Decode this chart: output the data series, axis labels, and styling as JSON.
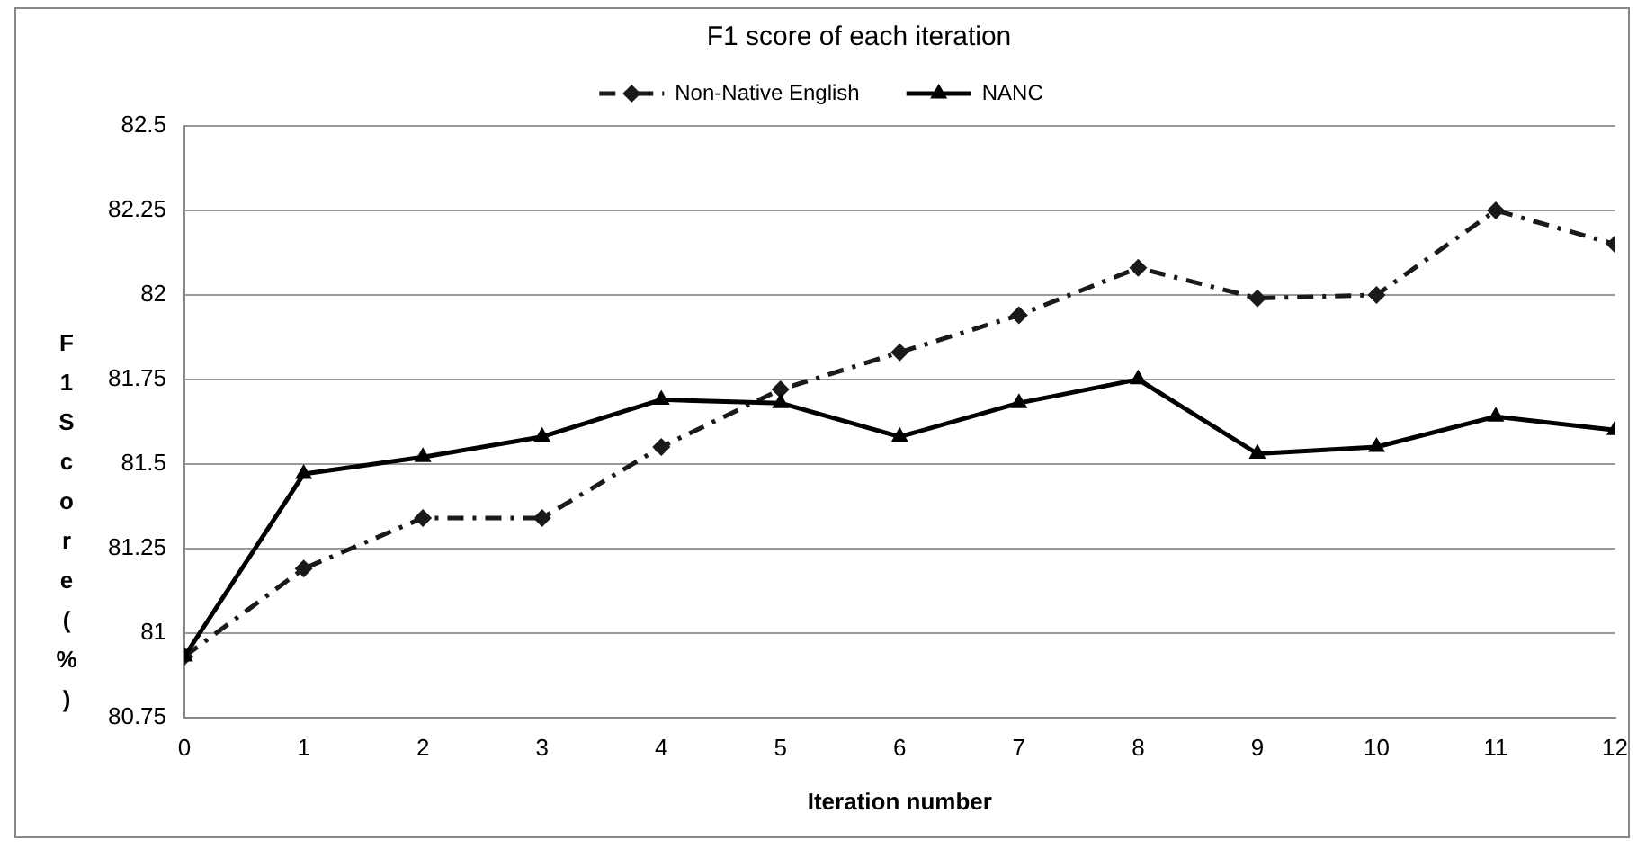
{
  "chart_data": {
    "type": "line",
    "title": "F1 score of each iteration",
    "xlabel": "Iteration number",
    "ylabel": "F1 Score (%)",
    "x": [
      0,
      1,
      2,
      3,
      4,
      5,
      6,
      7,
      8,
      9,
      10,
      11,
      12
    ],
    "series": [
      {
        "name": "Non-Native English",
        "color": "#1a1a1a",
        "marker": "diamond",
        "line_style": "dashed",
        "values": [
          80.93,
          81.19,
          81.34,
          81.34,
          81.55,
          81.72,
          81.83,
          81.94,
          82.08,
          81.99,
          82.0,
          82.25,
          82.15
        ]
      },
      {
        "name": "NANC",
        "color": "#000000",
        "marker": "triangle",
        "line_style": "solid",
        "values": [
          80.93,
          81.47,
          81.52,
          81.58,
          81.69,
          81.68,
          81.58,
          81.68,
          81.75,
          81.53,
          81.55,
          81.64,
          81.6
        ]
      }
    ],
    "xlim": [
      0,
      12
    ],
    "xticks": [
      0,
      1,
      2,
      3,
      4,
      5,
      6,
      7,
      8,
      9,
      10,
      11,
      12
    ],
    "ylim": [
      80.75,
      82.5
    ],
    "yticks": [
      80.75,
      81,
      81.25,
      81.5,
      81.75,
      82,
      82.25,
      82.5
    ],
    "grid": "y",
    "legend": "top"
  }
}
